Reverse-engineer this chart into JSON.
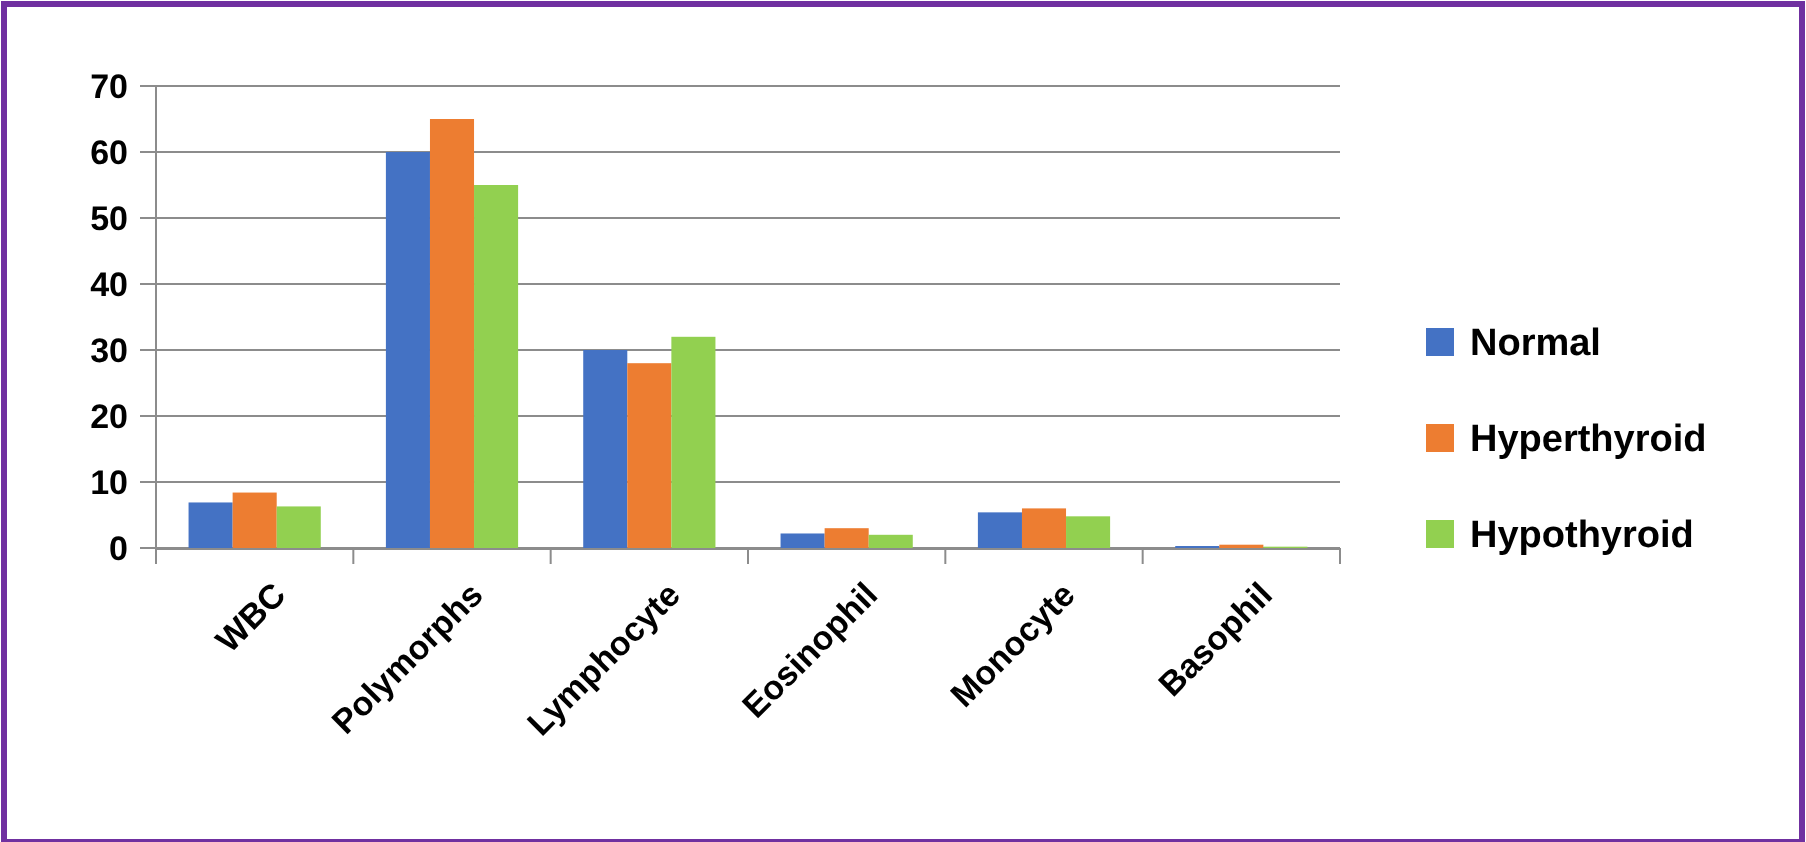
{
  "chart_data": {
    "type": "bar",
    "categories": [
      "WBC",
      "Polymorphs",
      "Lymphocyte",
      "Eosinophil",
      "Monocyte",
      "Basophil"
    ],
    "series": [
      {
        "name": "Normal",
        "color": "#4472c4",
        "values": [
          6.9,
          60,
          30,
          2.2,
          5.4,
          0.3
        ]
      },
      {
        "name": "Hyperthyroid",
        "color": "#ed7d31",
        "values": [
          8.4,
          65,
          28,
          3.0,
          6.0,
          0.5
        ]
      },
      {
        "name": "Hypothyroid",
        "color": "#92d050",
        "values": [
          6.3,
          55,
          32,
          2.0,
          4.8,
          0.2
        ]
      }
    ],
    "ylim": [
      0,
      70
    ],
    "yticks": [
      0,
      10,
      20,
      30,
      40,
      50,
      60,
      70
    ],
    "grid": "y",
    "legend": "right"
  }
}
